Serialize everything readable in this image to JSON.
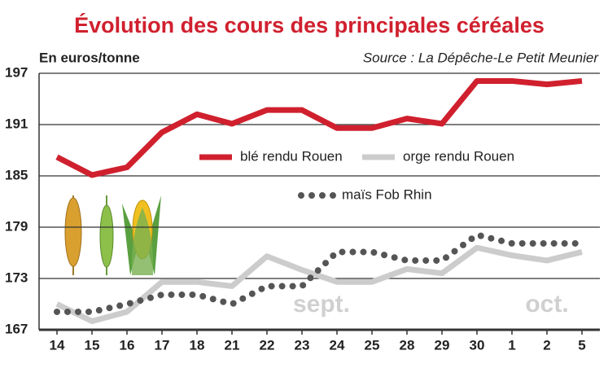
{
  "chart_data": {
    "type": "line",
    "title": "Évolution des cours des principales céréales",
    "y_label": "En euros/tonne",
    "source": "Source : La Dépêche-Le Petit Meunier",
    "annotations": [
      "sept.",
      "oct."
    ],
    "categories": [
      "14",
      "15",
      "16",
      "17",
      "18",
      "21",
      "22",
      "23",
      "24",
      "25",
      "28",
      "29",
      "30",
      "1",
      "2",
      "5"
    ],
    "series": [
      {
        "name": "blé rendu Rouen",
        "color": "#d0202e",
        "style": "solid",
        "values": [
          187.2,
          185.1,
          186.0,
          190.1,
          192.2,
          191.1,
          192.7,
          192.7,
          190.6,
          190.6,
          191.7,
          191.1,
          196.1,
          196.1,
          195.7,
          196.1
        ]
      },
      {
        "name": "orge rendu Rouen",
        "color": "#cccccc",
        "style": "solid",
        "values": [
          170.0,
          168.0,
          169.1,
          172.6,
          172.6,
          172.1,
          175.6,
          174.0,
          172.6,
          172.6,
          174.1,
          173.6,
          176.6,
          175.7,
          175.1,
          176.1
        ]
      },
      {
        "name": "maïs Fob Rhin",
        "color": "#555555",
        "style": "dotted",
        "values": [
          169.1,
          169.1,
          170.0,
          171.1,
          171.1,
          170.0,
          172.1,
          172.1,
          176.1,
          176.1,
          175.1,
          175.1,
          178.1,
          177.1,
          177.1,
          177.1
        ]
      }
    ],
    "ylim": [
      167,
      197
    ],
    "yticks": [
      167,
      173,
      179,
      185,
      191,
      197
    ],
    "grid": true
  }
}
